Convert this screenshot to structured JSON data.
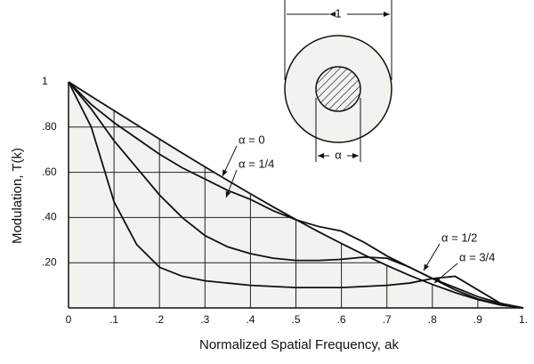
{
  "chart_data": {
    "type": "line",
    "x_label": "Normalized Spatial Frequency, ak",
    "y_label": "Modulation, T(k)",
    "x": [
      0,
      0.05,
      0.1,
      0.15,
      0.2,
      0.25,
      0.3,
      0.35,
      0.4,
      0.45,
      0.5,
      0.55,
      0.6,
      0.65,
      0.7,
      0.75,
      0.8,
      0.85,
      0.9,
      0.95,
      1
    ],
    "series": [
      {
        "name": "α = 0",
        "color": "#111111",
        "values": [
          1,
          0.936,
          0.873,
          0.81,
          0.747,
          0.685,
          0.624,
          0.564,
          0.505,
          0.447,
          0.391,
          0.337,
          0.285,
          0.235,
          0.188,
          0.144,
          0.104,
          0.068,
          0.037,
          0.013,
          0
        ]
      },
      {
        "name": "α = 1/4",
        "color": "#111111",
        "values": [
          1,
          0.9,
          0.82,
          0.75,
          0.68,
          0.62,
          0.57,
          0.52,
          0.48,
          0.43,
          0.39,
          0.36,
          0.34,
          0.29,
          0.23,
          0.18,
          0.13,
          0.09,
          0.05,
          0.02,
          0
        ]
      },
      {
        "name": "α = 1/2",
        "color": "#111111",
        "values": [
          1,
          0.88,
          0.74,
          0.62,
          0.5,
          0.4,
          0.32,
          0.27,
          0.24,
          0.22,
          0.21,
          0.21,
          0.215,
          0.225,
          0.22,
          0.18,
          0.13,
          0.08,
          0.04,
          0.015,
          0
        ]
      },
      {
        "name": "α = 3/4",
        "color": "#111111",
        "values": [
          1,
          0.8,
          0.47,
          0.28,
          0.18,
          0.14,
          0.12,
          0.11,
          0.1,
          0.095,
          0.09,
          0.09,
          0.09,
          0.095,
          0.1,
          0.11,
          0.13,
          0.14,
          0.08,
          0.02,
          0
        ]
      }
    ],
    "xlim": [
      0,
      1
    ],
    "ylim": [
      0,
      1
    ],
    "xticks": [
      0,
      {
        "value": 0.1,
        "label": ".1"
      },
      {
        "value": 0.2,
        "label": ".2"
      },
      {
        "value": 0.3,
        "label": ".3"
      },
      {
        "value": 0.4,
        "label": ".4"
      },
      {
        "value": 0.5,
        "label": ".5"
      },
      {
        "value": 0.6,
        "label": ".6"
      },
      {
        "value": 0.7,
        "label": ".7"
      },
      {
        "value": 0.8,
        "label": ".8"
      },
      {
        "value": 0.9,
        "label": ".9"
      },
      {
        "value": 1,
        "label": "1."
      }
    ],
    "yticks": [
      {
        "value": 0.2,
        "label": ".20"
      },
      {
        "value": 0.4,
        "label": ".40"
      },
      {
        "value": 0.6,
        "label": ".60"
      },
      {
        "value": 0.8,
        "label": ".80"
      },
      1
    ],
    "grid": true,
    "inset": {
      "outer_label": "1",
      "inner_label": "α"
    }
  }
}
